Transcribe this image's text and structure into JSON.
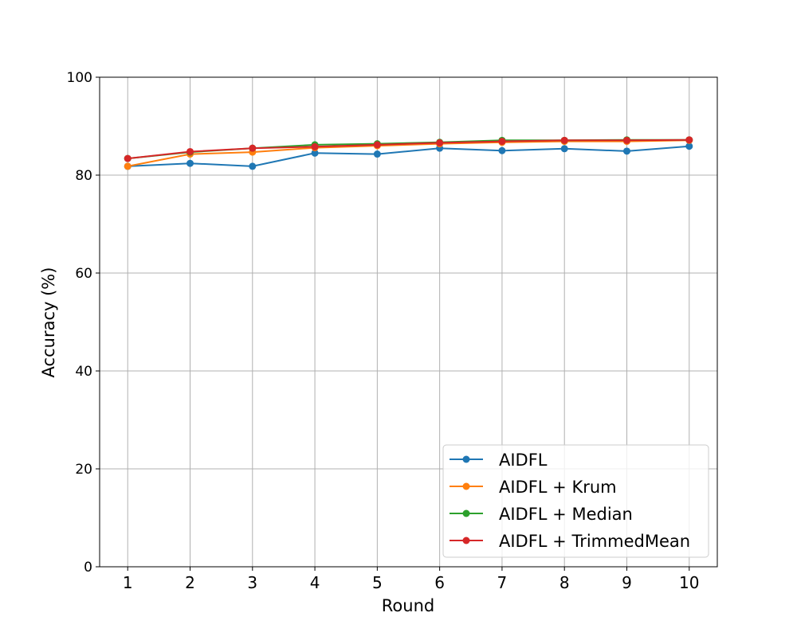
{
  "chart_data": {
    "type": "line",
    "title": "",
    "xlabel": "Round",
    "ylabel": "Accuracy (%)",
    "x": [
      1,
      2,
      3,
      4,
      5,
      6,
      7,
      8,
      9,
      10
    ],
    "x_ticks": [
      "1",
      "2",
      "3",
      "4",
      "5",
      "6",
      "7",
      "8",
      "9",
      "10"
    ],
    "y_ticks": [
      "0",
      "20",
      "40",
      "60",
      "80",
      "100"
    ],
    "xlim": [
      0.55,
      10.45
    ],
    "ylim": [
      0,
      100
    ],
    "grid": true,
    "legend_position": "lower-right",
    "series": [
      {
        "name": "AIDFL",
        "color": "#1f77b4",
        "marker": "circle",
        "values": [
          81.8,
          82.4,
          81.8,
          84.5,
          84.3,
          85.5,
          85.0,
          85.4,
          84.9,
          85.9
        ]
      },
      {
        "name": "AIDFL + Krum",
        "color": "#ff7f0e",
        "marker": "circle",
        "values": [
          81.8,
          84.3,
          84.7,
          85.6,
          86.0,
          86.4,
          86.7,
          86.9,
          86.9,
          87.1
        ]
      },
      {
        "name": "AIDFL + Median",
        "color": "#2ca02c",
        "marker": "circle",
        "values": [
          83.4,
          84.7,
          85.5,
          86.2,
          86.4,
          86.7,
          87.1,
          87.1,
          87.2,
          87.2
        ]
      },
      {
        "name": "AIDFL + TrimmedMean",
        "color": "#d62728",
        "marker": "circle",
        "values": [
          83.4,
          84.8,
          85.5,
          85.8,
          86.2,
          86.6,
          86.9,
          87.1,
          87.1,
          87.2
        ]
      }
    ]
  }
}
